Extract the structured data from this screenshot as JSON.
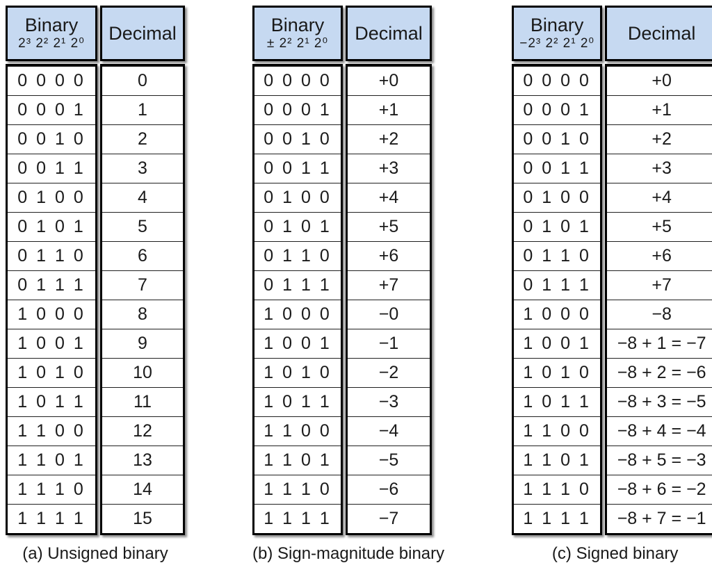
{
  "colors": {
    "header_bg": "#c6d9f1",
    "border": "#000000",
    "row_line": "#1f1f1f",
    "text": "#1a1a1a",
    "page_bg": "#ffffff"
  },
  "tables": [
    {
      "caption": "(a) Unsigned binary",
      "binary_header_title": "Binary",
      "binary_header_weights": "2³ 2² 2¹ 2⁰",
      "decimal_header": "Decimal",
      "rows": [
        {
          "binary": "0 0 0 0",
          "decimal": "0"
        },
        {
          "binary": "0 0 0 1",
          "decimal": "1"
        },
        {
          "binary": "0 0 1 0",
          "decimal": "2"
        },
        {
          "binary": "0 0 1 1",
          "decimal": "3"
        },
        {
          "binary": "0 1 0 0",
          "decimal": "4"
        },
        {
          "binary": "0 1 0 1",
          "decimal": "5"
        },
        {
          "binary": "0 1 1 0",
          "decimal": "6"
        },
        {
          "binary": "0 1 1 1",
          "decimal": "7"
        },
        {
          "binary": "1 0 0 0",
          "decimal": "8"
        },
        {
          "binary": "1 0 0 1",
          "decimal": "9"
        },
        {
          "binary": "1 0 1 0",
          "decimal": "10"
        },
        {
          "binary": "1 0 1 1",
          "decimal": "11"
        },
        {
          "binary": "1 1 0 0",
          "decimal": "12"
        },
        {
          "binary": "1 1 0 1",
          "decimal": "13"
        },
        {
          "binary": "1 1 1 0",
          "decimal": "14"
        },
        {
          "binary": "1 1 1 1",
          "decimal": "15"
        }
      ]
    },
    {
      "caption": "(b) Sign-magnitude binary",
      "binary_header_title": "Binary",
      "binary_header_weights": "± 2² 2¹ 2⁰",
      "decimal_header": "Decimal",
      "rows": [
        {
          "binary": "0 0 0 0",
          "decimal": "+0"
        },
        {
          "binary": "0 0 0 1",
          "decimal": "+1"
        },
        {
          "binary": "0 0 1 0",
          "decimal": "+2"
        },
        {
          "binary": "0 0 1 1",
          "decimal": "+3"
        },
        {
          "binary": "0 1 0 0",
          "decimal": "+4"
        },
        {
          "binary": "0 1 0 1",
          "decimal": "+5"
        },
        {
          "binary": "0 1 1 0",
          "decimal": "+6"
        },
        {
          "binary": "0 1 1 1",
          "decimal": "+7"
        },
        {
          "binary": "1 0 0 0",
          "decimal": "−0"
        },
        {
          "binary": "1 0 0 1",
          "decimal": "−1"
        },
        {
          "binary": "1 0 1 0",
          "decimal": "−2"
        },
        {
          "binary": "1 0 1 1",
          "decimal": "−3"
        },
        {
          "binary": "1 1 0 0",
          "decimal": "−4"
        },
        {
          "binary": "1 1 0 1",
          "decimal": "−5"
        },
        {
          "binary": "1 1 1 0",
          "decimal": "−6"
        },
        {
          "binary": "1 1 1 1",
          "decimal": "−7"
        }
      ]
    },
    {
      "caption": "(c) Signed binary",
      "binary_header_title": "Binary",
      "binary_header_weights": "−2³ 2² 2¹ 2⁰",
      "decimal_header": "Decimal",
      "rows": [
        {
          "binary": "0 0 0 0",
          "decimal": "+0"
        },
        {
          "binary": "0 0 0 1",
          "decimal": "+1"
        },
        {
          "binary": "0 0 1 0",
          "decimal": "+2"
        },
        {
          "binary": "0 0 1 1",
          "decimal": "+3"
        },
        {
          "binary": "0 1 0 0",
          "decimal": "+4"
        },
        {
          "binary": "0 1 0 1",
          "decimal": "+5"
        },
        {
          "binary": "0 1 1 0",
          "decimal": "+6"
        },
        {
          "binary": "0 1 1 1",
          "decimal": "+7"
        },
        {
          "binary": "1 0 0 0",
          "decimal": "−8"
        },
        {
          "binary": "1 0 0 1",
          "decimal": "−8 + 1 = −7"
        },
        {
          "binary": "1 0 1 0",
          "decimal": "−8 + 2 = −6"
        },
        {
          "binary": "1 0 1 1",
          "decimal": "−8 + 3 = −5"
        },
        {
          "binary": "1 1 0 0",
          "decimal": "−8 + 4 = −4"
        },
        {
          "binary": "1 1 0 1",
          "decimal": "−8 + 5 = −3"
        },
        {
          "binary": "1 1 1 0",
          "decimal": "−8 + 6 = −2"
        },
        {
          "binary": "1 1 1 1",
          "decimal": "−8 + 7 = −1"
        }
      ]
    }
  ]
}
